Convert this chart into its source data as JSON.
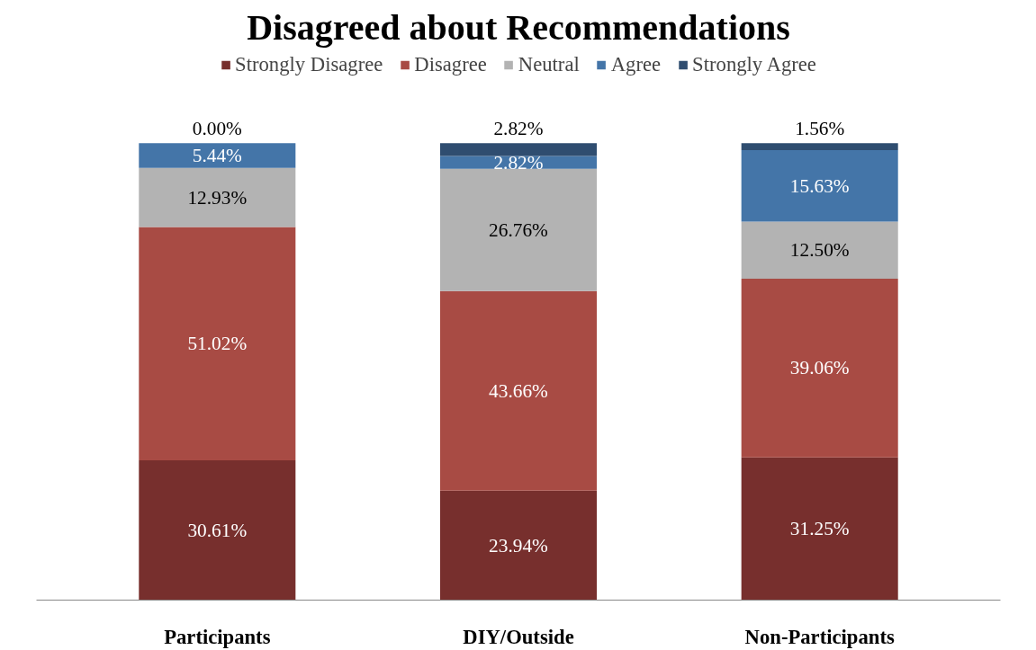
{
  "chart_data": {
    "type": "bar",
    "title": "Disagreed about Recommendations",
    "categories": [
      "Participants",
      "DIY/Outside",
      "Non-Participants"
    ],
    "stacked": true,
    "legend": "top",
    "tick_labels": "x",
    "series": [
      {
        "name": "Strongly Disagree",
        "color": "#772f2d",
        "values": [
          30.61,
          23.94,
          31.25
        ],
        "value_labels": [
          "30.61%",
          "23.94%",
          "31.25%"
        ]
      },
      {
        "name": "Disagree",
        "color": "#a84b44",
        "values": [
          51.02,
          43.66,
          39.06
        ],
        "value_labels": [
          "51.02%",
          "43.66%",
          "39.06%"
        ]
      },
      {
        "name": "Neutral",
        "color": "#b3b3b3",
        "values": [
          12.93,
          26.76,
          12.5
        ],
        "value_labels": [
          "12.93%",
          "26.76%",
          "12.50%"
        ]
      },
      {
        "name": "Agree",
        "color": "#4475a8",
        "values": [
          5.44,
          2.82,
          15.63
        ],
        "value_labels": [
          "5.44%",
          "2.82%",
          "15.63%"
        ]
      },
      {
        "name": "Strongly Agree",
        "color": "#2f4d70",
        "values": [
          0.0,
          2.82,
          1.56
        ],
        "value_labels": [
          "0.00%",
          "2.82%",
          "1.56%"
        ]
      }
    ]
  }
}
